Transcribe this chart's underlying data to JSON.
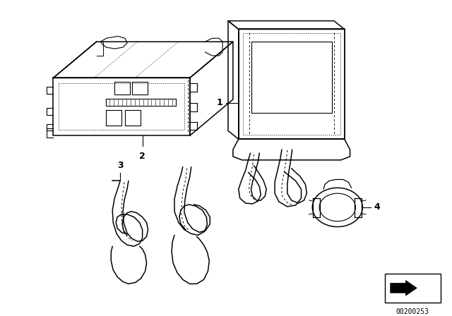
{
  "bg_color": "#ffffff",
  "catalog_number": "00200253",
  "figsize": [
    6.4,
    4.48
  ],
  "dpi": 100,
  "lw_main": 1.1,
  "lw_detail": 0.7,
  "lw_label": 0.8
}
